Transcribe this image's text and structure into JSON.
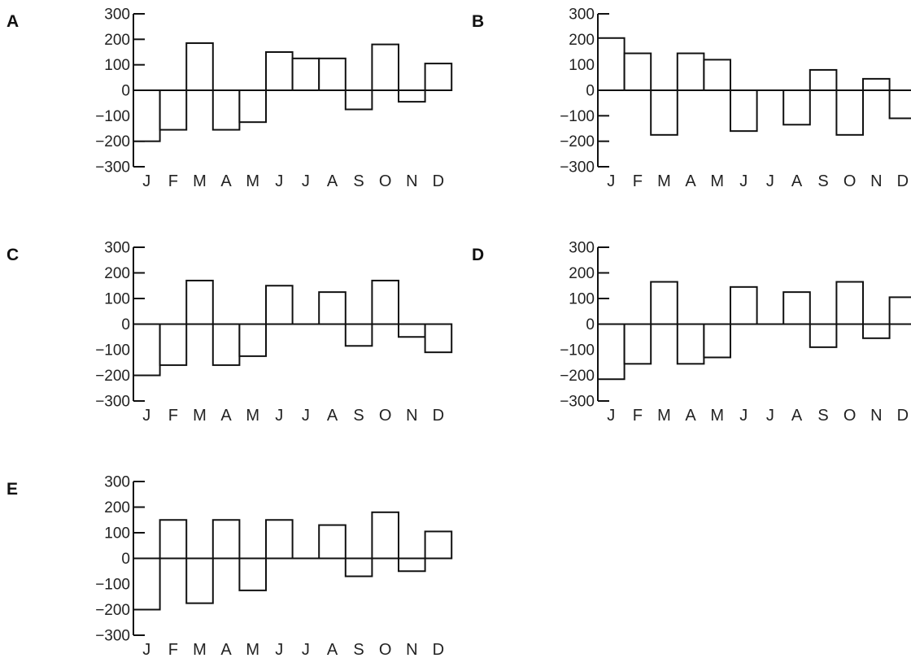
{
  "chart_data": [
    {
      "panel": "A",
      "type": "bar",
      "categories": [
        "J",
        "F",
        "M",
        "A",
        "M",
        "J",
        "J",
        "A",
        "S",
        "O",
        "N",
        "D"
      ],
      "values": [
        -200,
        -155,
        185,
        -155,
        -125,
        150,
        125,
        125,
        -75,
        180,
        -45,
        105
      ],
      "ylim": [
        -300,
        300
      ],
      "yticks": [
        "300",
        "200",
        "100",
        "0",
        "−100",
        "−200",
        "−300"
      ]
    },
    {
      "panel": "B",
      "type": "bar",
      "categories": [
        "J",
        "F",
        "M",
        "A",
        "M",
        "J",
        "J",
        "A",
        "S",
        "O",
        "N",
        "D"
      ],
      "values": [
        205,
        145,
        -175,
        145,
        120,
        -160,
        0,
        -135,
        80,
        -175,
        45,
        -110
      ],
      "ylim": [
        -300,
        300
      ],
      "yticks": [
        "300",
        "200",
        "100",
        "0",
        "−100",
        "−200",
        "−300"
      ]
    },
    {
      "panel": "C",
      "type": "bar",
      "categories": [
        "J",
        "F",
        "M",
        "A",
        "M",
        "J",
        "J",
        "A",
        "S",
        "O",
        "N",
        "D"
      ],
      "values": [
        -200,
        -160,
        170,
        -160,
        -125,
        150,
        0,
        125,
        -85,
        170,
        -50,
        -110
      ],
      "ylim": [
        -300,
        300
      ],
      "yticks": [
        "300",
        "200",
        "100",
        "0",
        "−100",
        "−200",
        "−300"
      ]
    },
    {
      "panel": "D",
      "type": "bar",
      "categories": [
        "J",
        "F",
        "M",
        "A",
        "M",
        "J",
        "J",
        "A",
        "S",
        "O",
        "N",
        "D"
      ],
      "values": [
        -215,
        -155,
        165,
        -155,
        -130,
        145,
        0,
        125,
        -90,
        165,
        -55,
        105
      ],
      "ylim": [
        -300,
        300
      ],
      "yticks": [
        "300",
        "200",
        "100",
        "0",
        "−100",
        "−200",
        "−300"
      ]
    },
    {
      "panel": "E",
      "type": "bar",
      "categories": [
        "J",
        "F",
        "M",
        "A",
        "M",
        "J",
        "J",
        "A",
        "S",
        "O",
        "N",
        "D"
      ],
      "values": [
        -200,
        150,
        -175,
        150,
        -125,
        150,
        0,
        130,
        -70,
        180,
        -50,
        105
      ],
      "ylim": [
        -300,
        300
      ],
      "yticks": [
        "300",
        "200",
        "100",
        "0",
        "−100",
        "−200",
        "−300"
      ]
    }
  ]
}
